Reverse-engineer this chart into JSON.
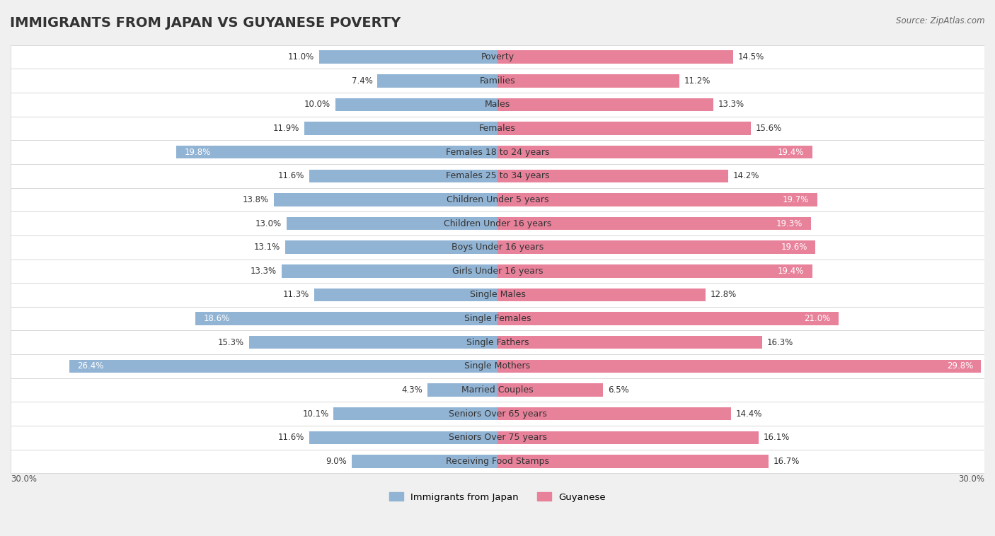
{
  "title": "IMMIGRANTS FROM JAPAN VS GUYANESE POVERTY",
  "source": "Source: ZipAtlas.com",
  "categories": [
    "Poverty",
    "Families",
    "Males",
    "Females",
    "Females 18 to 24 years",
    "Females 25 to 34 years",
    "Children Under 5 years",
    "Children Under 16 years",
    "Boys Under 16 years",
    "Girls Under 16 years",
    "Single Males",
    "Single Females",
    "Single Fathers",
    "Single Mothers",
    "Married Couples",
    "Seniors Over 65 years",
    "Seniors Over 75 years",
    "Receiving Food Stamps"
  ],
  "japan_values": [
    11.0,
    7.4,
    10.0,
    11.9,
    19.8,
    11.6,
    13.8,
    13.0,
    13.1,
    13.3,
    11.3,
    18.6,
    15.3,
    26.4,
    4.3,
    10.1,
    11.6,
    9.0
  ],
  "guyanese_values": [
    14.5,
    11.2,
    13.3,
    15.6,
    19.4,
    14.2,
    19.7,
    19.3,
    19.6,
    19.4,
    12.8,
    21.0,
    16.3,
    29.8,
    6.5,
    14.4,
    16.1,
    16.7
  ],
  "japan_color": "#92b4d4",
  "guyanese_color": "#e8819a",
  "japan_label": "Immigrants from Japan",
  "guyanese_label": "Guyanese",
  "xlim": 30.0,
  "axis_label_left": "30.0%",
  "axis_label_right": "30.0%",
  "background_color": "#f0f0f0",
  "bar_bg_color": "#ffffff",
  "title_fontsize": 14,
  "label_fontsize": 9,
  "value_fontsize": 8.5
}
